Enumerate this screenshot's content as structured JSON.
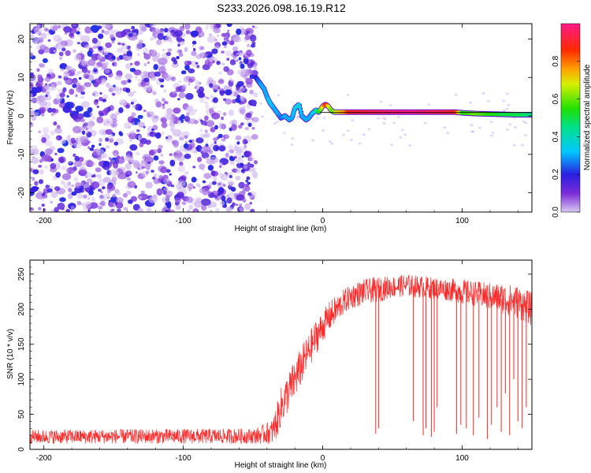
{
  "figure_title": "S233.2026.098.16.19.R12",
  "chart_data": [
    {
      "type": "heatmap",
      "title": "S233.2026.098.16.19.R12",
      "xlabel": "Height of straight line (km)",
      "ylabel": "Frequency (Hz)",
      "xlim": [
        -210,
        150
      ],
      "ylim": [
        -25,
        24
      ],
      "xticks": [
        -200,
        -100,
        0,
        100
      ],
      "yticks": [
        -20,
        -10,
        0,
        10,
        20
      ],
      "colorbar": {
        "label": "Normalized spectral amplitude",
        "range": [
          0,
          1
        ],
        "ticks": [
          0.0,
          0.2,
          0.4,
          0.6,
          0.8
        ]
      },
      "noise_region_x": [
        -210,
        -48
      ],
      "trace": {
        "x": [
          -48,
          -46,
          -44,
          -42,
          -40,
          -38,
          -35,
          -32,
          -30,
          -27,
          -24,
          -22,
          -20,
          -17,
          -15,
          -12,
          -10,
          -8,
          -5,
          -3,
          0,
          2,
          4,
          6,
          8,
          10,
          15,
          20,
          40,
          60,
          80,
          95,
          100,
          110,
          120,
          130,
          140,
          150
        ],
        "freq": [
          10,
          9,
          8,
          7,
          5,
          3.5,
          2,
          0.5,
          -0.5,
          0,
          -1,
          -0.5,
          2,
          3,
          0,
          -1,
          -0.5,
          0.5,
          1.5,
          1,
          2.5,
          3,
          2.5,
          1.5,
          1,
          1,
          1,
          1,
          1,
          1,
          1,
          1,
          0.8,
          0.6,
          0.5,
          0.4,
          0.3,
          0.3
        ],
        "amp": [
          0.2,
          0.25,
          0.3,
          0.3,
          0.3,
          0.35,
          0.3,
          0.3,
          0.25,
          0.3,
          0.3,
          0.3,
          0.35,
          0.35,
          0.3,
          0.3,
          0.3,
          0.3,
          0.4,
          0.5,
          0.7,
          0.9,
          0.7,
          0.6,
          0.6,
          0.7,
          0.75,
          0.9,
          0.95,
          1.0,
          0.95,
          0.9,
          0.55,
          0.6,
          0.55,
          0.5,
          0.5,
          0.45
        ]
      },
      "reference_line": {
        "y": 0.9,
        "x_range": [
          -2,
          150
        ]
      }
    },
    {
      "type": "line",
      "xlabel": "Height of straight line (km)",
      "ylabel": "SNR (10 * v/v)",
      "xlim": [
        -210,
        150
      ],
      "ylim": [
        0,
        270
      ],
      "xticks": [
        -200,
        -100,
        0,
        100
      ],
      "yticks": [
        0,
        50,
        100,
        150,
        200,
        250
      ],
      "color": "#ff2a2a",
      "envelope": {
        "x": [
          -210,
          -48,
          -36,
          -33,
          -30,
          -25,
          -20,
          -15,
          -10,
          -5,
          0,
          5,
          10,
          15,
          20,
          30,
          40,
          50,
          60,
          70,
          80,
          90,
          100,
          110,
          120,
          130,
          140,
          150
        ],
        "base": [
          18,
          19,
          25,
          40,
          60,
          80,
          100,
          120,
          140,
          160,
          175,
          190,
          200,
          210,
          218,
          225,
          228,
          232,
          234,
          232,
          230,
          228,
          225,
          222,
          218,
          215,
          210,
          200
        ],
        "jitter": [
          10,
          11,
          18,
          25,
          28,
          28,
          28,
          28,
          25,
          25,
          22,
          22,
          20,
          18,
          18,
          18,
          18,
          16,
          16,
          16,
          16,
          16,
          18,
          18,
          20,
          22,
          24,
          24
        ]
      },
      "dropouts": [
        {
          "x": 38,
          "y": 22
        },
        {
          "x": 40,
          "y": 30
        },
        {
          "x": 65,
          "y": 40
        },
        {
          "x": 72,
          "y": 20
        },
        {
          "x": 74,
          "y": 30
        },
        {
          "x": 78,
          "y": 18
        },
        {
          "x": 80,
          "y": 25
        },
        {
          "x": 82,
          "y": 60
        },
        {
          "x": 96,
          "y": 22
        },
        {
          "x": 99,
          "y": 35
        },
        {
          "x": 103,
          "y": 30
        },
        {
          "x": 108,
          "y": 20
        },
        {
          "x": 112,
          "y": 45
        },
        {
          "x": 118,
          "y": 15
        },
        {
          "x": 121,
          "y": 35
        },
        {
          "x": 125,
          "y": 60
        },
        {
          "x": 128,
          "y": 25
        },
        {
          "x": 131,
          "y": 80
        },
        {
          "x": 134,
          "y": 20
        },
        {
          "x": 137,
          "y": 100
        },
        {
          "x": 140,
          "y": 40
        },
        {
          "x": 143,
          "y": 30
        },
        {
          "x": 146,
          "y": 60
        }
      ]
    }
  ]
}
